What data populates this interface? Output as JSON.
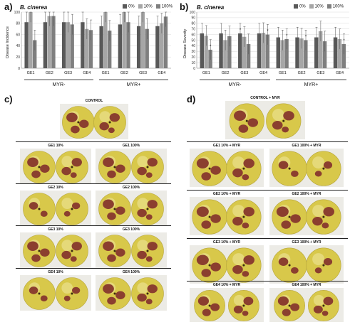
{
  "panels": {
    "a": {
      "letter": "a)",
      "organism": "B. cinerea",
      "ylabel": "Disease Incidence"
    },
    "b": {
      "letter": "b)",
      "organism": "B. cinerea",
      "ylabel": "Disease Severity"
    },
    "c": {
      "letter": "c)"
    },
    "d": {
      "letter": "d)"
    }
  },
  "legend": [
    "0%",
    "10%",
    "100%"
  ],
  "colors": {
    "s0": "#595959",
    "s10": "#a6a6a6",
    "s100": "#7f7f7f",
    "apple": "#d8c84a",
    "lesion": "#8b3f2f"
  },
  "chart_data": [
    {
      "type": "bar",
      "title": "B. cinerea",
      "ylabel": "Disease Incidence",
      "ylim": [
        0,
        100
      ],
      "yticks": [
        0,
        20,
        40,
        60,
        80,
        100
      ],
      "categories": [
        "GE1",
        "GE2",
        "GE3",
        "GE4",
        "GE1",
        "GE2",
        "GE3",
        "GE4"
      ],
      "groups": [
        "MYR-",
        "MYR+"
      ],
      "series": [
        {
          "name": "0%",
          "values": [
            82,
            82,
            82,
            82,
            75,
            78,
            75,
            75
          ]
        },
        {
          "name": "10%",
          "values": [
            100,
            93,
            82,
            70,
            100,
            100,
            100,
            80
          ]
        },
        {
          "name": "100%",
          "values": [
            50,
            93,
            78,
            68,
            67,
            82,
            70,
            92
          ]
        }
      ],
      "grid": true,
      "legend_position": "top-right"
    },
    {
      "type": "bar",
      "title": "B. cinerea",
      "ylabel": "Disease Severity",
      "ylim": [
        0,
        100
      ],
      "yticks": [
        0,
        10,
        20,
        30,
        40,
        50,
        60,
        70,
        80,
        90,
        100
      ],
      "categories": [
        "GE1",
        "GE2",
        "GE3",
        "GE4",
        "GE1",
        "GE2",
        "GE3",
        "GE4"
      ],
      "groups": [
        "MYR-",
        "MYR+"
      ],
      "series": [
        {
          "name": "0%",
          "values": [
            62,
            62,
            62,
            62,
            55,
            55,
            55,
            55
          ]
        },
        {
          "name": "10%",
          "values": [
            58,
            50,
            56,
            63,
            50,
            53,
            66,
            52
          ]
        },
        {
          "name": "100%",
          "values": [
            33,
            57,
            43,
            60,
            52,
            50,
            48,
            43
          ]
        }
      ],
      "significance": [
        2,
        6,
        11,
        14,
        17,
        23
      ],
      "grid": true,
      "legend_position": "top-right"
    }
  ],
  "photos_c": {
    "control": "CONTROL",
    "rows": [
      [
        "GE1 10%",
        "GE1 100%"
      ],
      [
        "GE2 10%",
        "GE2 100%"
      ],
      [
        "GE3 10%",
        "GE3 100%"
      ],
      [
        "GE4 10%",
        "GE4 100%"
      ]
    ]
  },
  "photos_d": {
    "control": "CONTROL + MYR",
    "rows": [
      [
        "GE1 10% + MYR",
        "GE1 100% + MYR"
      ],
      [
        "GE2 10% + MYR",
        "GE2 100% + MYR"
      ],
      [
        "GE3 10% + MYR",
        "GE3 100% + MYR"
      ],
      [
        "GE4 10% + MYR",
        "GE4 100% + MYR"
      ]
    ]
  }
}
